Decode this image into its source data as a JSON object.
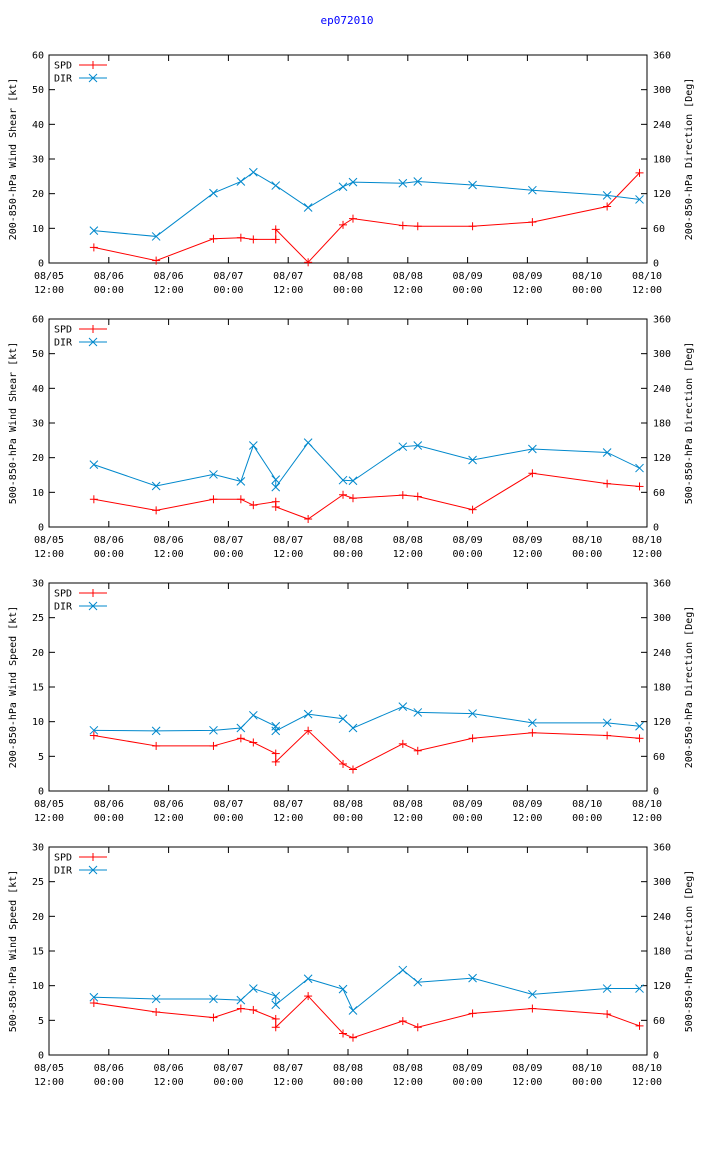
{
  "title": "ep072010",
  "colors": {
    "spd": "#ff0000",
    "dir": "#0088cc",
    "title": "#0000ff"
  },
  "x_ticks": [
    [
      "08/05",
      "12:00"
    ],
    [
      "08/06",
      "00:00"
    ],
    [
      "08/06",
      "12:00"
    ],
    [
      "08/07",
      "00:00"
    ],
    [
      "08/07",
      "12:00"
    ],
    [
      "08/08",
      "00:00"
    ],
    [
      "08/08",
      "12:00"
    ],
    [
      "08/09",
      "00:00"
    ],
    [
      "08/09",
      "12:00"
    ],
    [
      "08/10",
      "00:00"
    ],
    [
      "08/10",
      "12:00"
    ]
  ],
  "chart_data": [
    {
      "type": "line",
      "ylabel": "200-850-hPa Wind Shear [kt]",
      "y2label": "200-850-hPa Direction [Deg]",
      "ylim": [
        0,
        60
      ],
      "yticks": [
        0,
        10,
        20,
        30,
        40,
        50,
        60
      ],
      "y2lim": [
        0,
        360
      ],
      "y2ticks": [
        0,
        60,
        120,
        180,
        240,
        300,
        360
      ],
      "xlim_hours": [
        0,
        120
      ],
      "legend": [
        "SPD",
        "DIR"
      ],
      "series": [
        {
          "name": "SPD",
          "axis": "left",
          "marker": "+",
          "x": [
            9,
            21.5,
            33,
            38.5,
            41,
            45.5,
            45.5,
            52,
            59,
            61,
            71,
            74,
            85,
            97,
            112,
            118.5
          ],
          "y": [
            4.5,
            0.7,
            7,
            7.3,
            6.8,
            6.8,
            9.7,
            0.2,
            11,
            12.8,
            10.8,
            10.6,
            10.6,
            11.8,
            16.3,
            26
          ]
        },
        {
          "name": "DIR",
          "axis": "right",
          "marker": "x",
          "x": [
            9,
            21.5,
            33,
            38.5,
            41,
            45.5,
            52,
            59,
            61,
            71,
            74,
            85,
            97,
            112,
            118.5
          ],
          "y": [
            56,
            46,
            121,
            141,
            157,
            134,
            96,
            132,
            140,
            138,
            141,
            135,
            126,
            117,
            110
          ]
        }
      ]
    },
    {
      "type": "line",
      "ylabel": "500-850-hPa Wind Shear [kt]",
      "y2label": "500-850-hPa Direction [Deg]",
      "ylim": [
        0,
        60
      ],
      "yticks": [
        0,
        10,
        20,
        30,
        40,
        50,
        60
      ],
      "y2lim": [
        0,
        360
      ],
      "y2ticks": [
        0,
        60,
        120,
        180,
        240,
        300,
        360
      ],
      "xlim_hours": [
        0,
        120
      ],
      "legend": [
        "SPD",
        "DIR"
      ],
      "series": [
        {
          "name": "SPD",
          "axis": "left",
          "marker": "+",
          "x": [
            9,
            21.5,
            33,
            38.5,
            41,
            45.5,
            45.5,
            52,
            59,
            61,
            71,
            74,
            85,
            97,
            112,
            118.5
          ],
          "y": [
            8,
            4.8,
            8,
            8,
            6.3,
            7.3,
            5.8,
            2.3,
            9.3,
            8.3,
            9.2,
            8.8,
            5,
            15.5,
            12.5,
            11.7
          ]
        },
        {
          "name": "DIR",
          "axis": "right",
          "marker": "x",
          "x": [
            9,
            21.5,
            33,
            38.5,
            41,
            45.5,
            45.5,
            52,
            59,
            61,
            71,
            74,
            85,
            97,
            112,
            118.5
          ],
          "y": [
            108,
            71,
            91,
            79,
            141,
            82,
            69,
            146,
            81,
            80,
            139,
            141,
            116,
            135,
            129,
            102
          ]
        }
      ]
    },
    {
      "type": "line",
      "ylabel": "200-850-hPa Wind Speed [kt]",
      "y2label": "200-850-hPa Direction [Deg]",
      "ylim": [
        0,
        30
      ],
      "yticks": [
        0,
        5,
        10,
        15,
        20,
        25,
        30
      ],
      "y2lim": [
        0,
        360
      ],
      "y2ticks": [
        0,
        60,
        120,
        180,
        240,
        300,
        360
      ],
      "xlim_hours": [
        0,
        120
      ],
      "legend": [
        "SPD",
        "DIR"
      ],
      "series": [
        {
          "name": "SPD",
          "axis": "left",
          "marker": "+",
          "x": [
            9,
            21.5,
            33,
            38.5,
            41,
            45.5,
            45.5,
            52,
            59,
            61,
            71,
            74,
            85,
            97,
            112,
            118.5
          ],
          "y": [
            8,
            6.5,
            6.5,
            7.6,
            7,
            5.4,
            4.2,
            8.7,
            3.9,
            3.1,
            6.8,
            5.8,
            7.6,
            8.4,
            8,
            7.6
          ]
        },
        {
          "name": "DIR",
          "axis": "right",
          "marker": "x",
          "x": [
            9,
            21.5,
            33,
            38.5,
            41,
            45.5,
            45.5,
            52,
            59,
            61,
            71,
            74,
            85,
            97,
            112,
            118.5
          ],
          "y": [
            105,
            104,
            105,
            109,
            131,
            112,
            104,
            133,
            125,
            109,
            146,
            136,
            134,
            118,
            118,
            112
          ]
        }
      ]
    },
    {
      "type": "line",
      "ylabel": "500-850-hPa Wind Speed [kt]",
      "y2label": "500-850-hPa Direction [Deg]",
      "ylim": [
        0,
        30
      ],
      "yticks": [
        0,
        5,
        10,
        15,
        20,
        25,
        30
      ],
      "y2lim": [
        0,
        360
      ],
      "y2ticks": [
        0,
        60,
        120,
        180,
        240,
        300,
        360
      ],
      "xlim_hours": [
        0,
        120
      ],
      "legend": [
        "SPD",
        "DIR"
      ],
      "series": [
        {
          "name": "SPD",
          "axis": "left",
          "marker": "+",
          "x": [
            9,
            21.5,
            33,
            38.5,
            41,
            45.5,
            45.5,
            52,
            59,
            61,
            71,
            74,
            85,
            97,
            112,
            118.5
          ],
          "y": [
            7.5,
            6.2,
            5.4,
            6.7,
            6.5,
            5.2,
            4,
            8.5,
            3.1,
            2.5,
            4.9,
            4,
            6,
            6.7,
            5.9,
            4.2
          ]
        },
        {
          "name": "DIR",
          "axis": "right",
          "marker": "x",
          "x": [
            9,
            21.5,
            33,
            38.5,
            41,
            45.5,
            45.5,
            52,
            59,
            61,
            71,
            74,
            85,
            97,
            112,
            118.5
          ],
          "y": [
            100,
            97,
            97,
            95,
            115,
            102,
            87,
            132,
            114,
            77,
            147,
            126,
            133,
            105,
            115,
            115
          ]
        }
      ]
    }
  ]
}
